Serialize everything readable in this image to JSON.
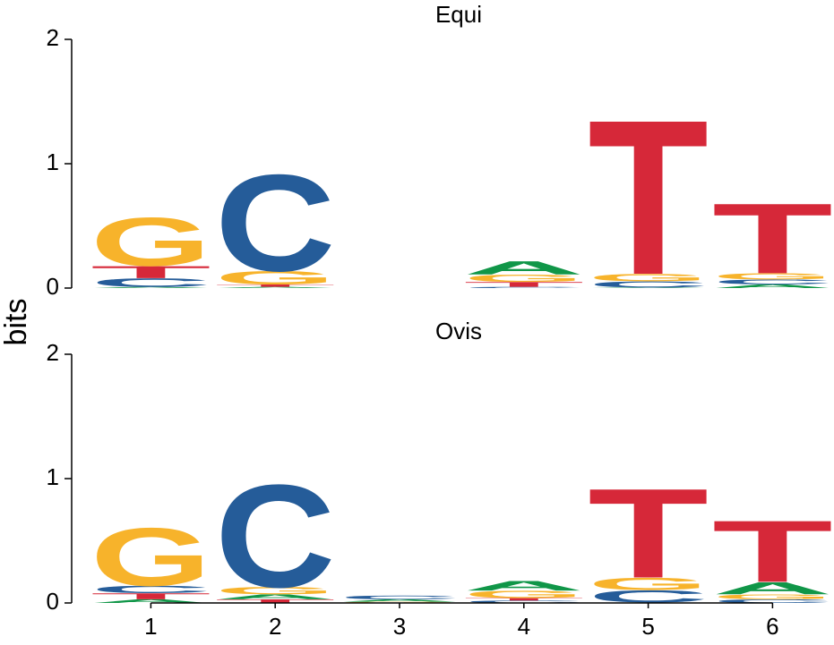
{
  "chart_data": [
    {
      "type": "logo",
      "title": "Equi",
      "ylabel": "bits",
      "ylim": [
        0,
        2
      ],
      "yticks": [
        0,
        1,
        2
      ],
      "series": [
        {
          "name": "A",
          "color": "#109648",
          "values": [
            0.01,
            0.01,
            0,
            0.11,
            0.005,
            0.03
          ]
        },
        {
          "name": "C",
          "color": "#255c99",
          "values": [
            0.07,
            0.8,
            0,
            0.01,
            0.05,
            0.04
          ]
        },
        {
          "name": "G",
          "color": "#f7b32b",
          "values": [
            0.4,
            0.11,
            0,
            0.06,
            0.06,
            0.05
          ]
        },
        {
          "name": "T",
          "color": "#d62839",
          "values": [
            0.1,
            0.02,
            0,
            0.04,
            1.28,
            0.58
          ]
        }
      ]
    },
    {
      "type": "logo",
      "title": "Ovis",
      "categories": [
        "1",
        "2",
        "3",
        "4",
        "5",
        "6"
      ],
      "ylim": [
        0,
        2
      ],
      "yticks": [
        0,
        1,
        2
      ],
      "series": [
        {
          "name": "A",
          "color": "#109648",
          "values": [
            0.03,
            0.04,
            0.02,
            0.08,
            0.005,
            0.1
          ]
        },
        {
          "name": "C",
          "color": "#255c99",
          "values": [
            0.06,
            0.85,
            0.03,
            0.02,
            0.1,
            0.03
          ]
        },
        {
          "name": "G",
          "color": "#f7b32b",
          "values": [
            0.48,
            0.06,
            0.01,
            0.06,
            0.1,
            0.04
          ]
        },
        {
          "name": "T",
          "color": "#d62839",
          "values": [
            0.05,
            0.03,
            0,
            0.02,
            0.74,
            0.51
          ]
        }
      ]
    }
  ]
}
